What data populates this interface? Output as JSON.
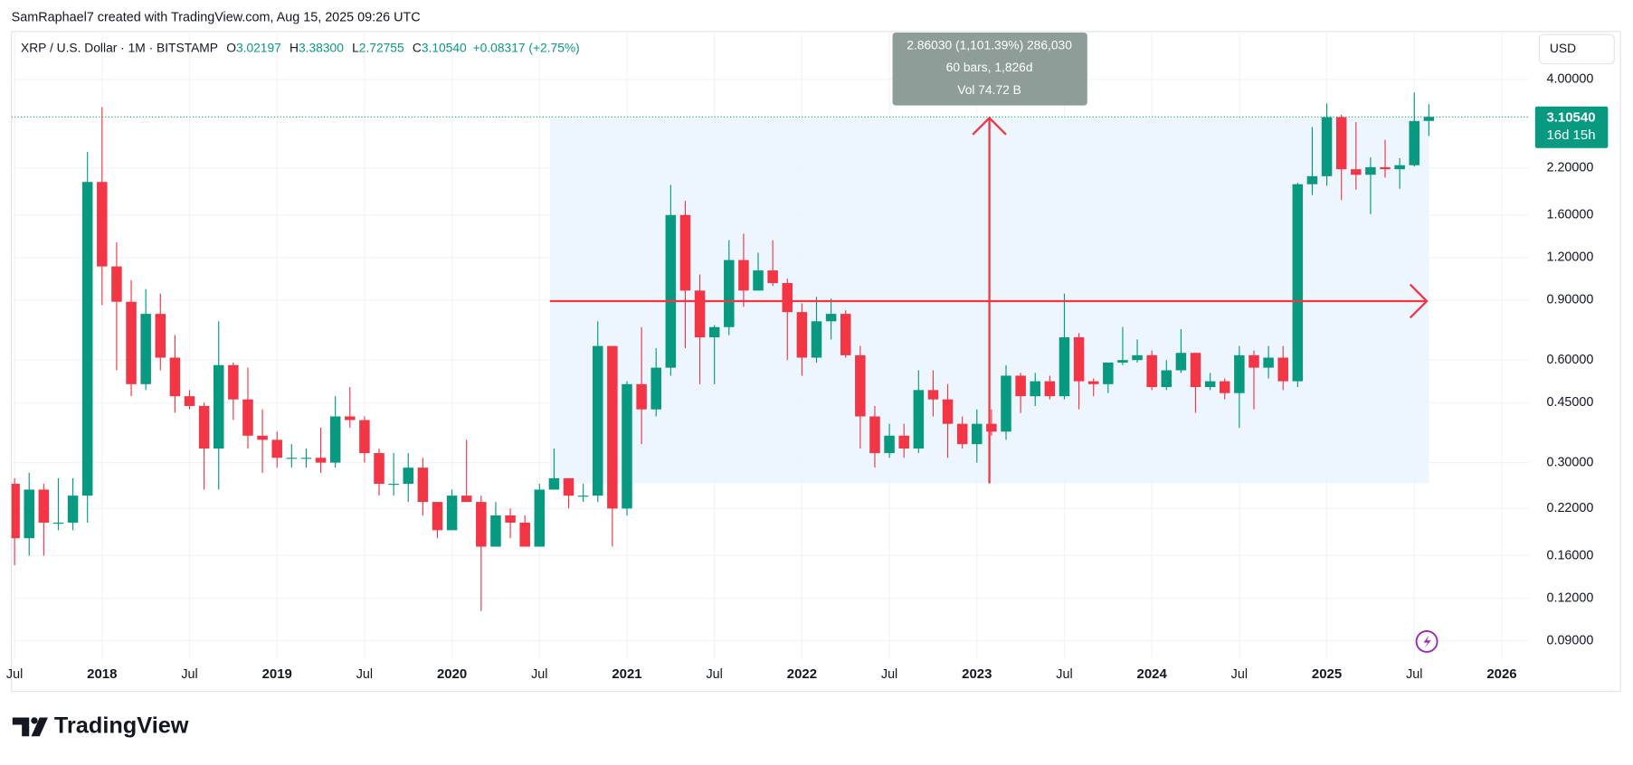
{
  "header": {
    "attribution": "SamRaphael7 created with TradingView.com, Aug 15, 2025 09:26 UTC",
    "symbol": "XRP / U.S. Dollar · 1M · BITSTAMP",
    "open_label": "O",
    "open": "3.02197",
    "high_label": "H",
    "high": "3.38300",
    "low_label": "L",
    "low": "2.72755",
    "close_label": "C",
    "close": "3.10540",
    "change": "+0.08317 (+2.75%)",
    "currency": "USD"
  },
  "chart_data": {
    "type": "candlestick",
    "log_scale": true,
    "grid": true,
    "up_color": "#089981",
    "down_color": "#f23645",
    "categories": [
      "Jul",
      null,
      null,
      null,
      null,
      null,
      "2018",
      null,
      null,
      null,
      null,
      null,
      "Jul",
      null,
      null,
      null,
      null,
      null,
      "2019",
      null,
      null,
      null,
      null,
      null,
      "Jul",
      null,
      null,
      null,
      null,
      null,
      "2020",
      null,
      null,
      null,
      null,
      null,
      "Jul",
      null,
      null,
      null,
      null,
      null,
      "2021",
      null,
      null,
      null,
      null,
      null,
      "Jul",
      null,
      null,
      null,
      null,
      null,
      "2022",
      null,
      null,
      null,
      null,
      null,
      "Jul",
      null,
      null,
      null,
      null,
      null,
      "2023",
      null,
      null,
      null,
      null,
      null,
      "Jul",
      null,
      null,
      null,
      null,
      null,
      "2024",
      null,
      null,
      null,
      null,
      null,
      "Jul",
      null,
      null,
      null,
      null,
      null,
      "2025",
      null,
      null,
      null,
      null,
      null,
      "Jul",
      null,
      null,
      null,
      null,
      null,
      "2026"
    ],
    "open": [
      0.26,
      0.18,
      0.25,
      0.2,
      0.2,
      0.24,
      2.0,
      1.13,
      0.89,
      0.51,
      0.82,
      0.61,
      0.47,
      0.44,
      0.33,
      0.58,
      0.46,
      0.36,
      0.35,
      0.31,
      0.31,
      0.31,
      0.3,
      0.41,
      0.4,
      0.32,
      0.26,
      0.26,
      0.29,
      0.23,
      0.19,
      0.24,
      0.23,
      0.17,
      0.21,
      0.2,
      0.17,
      0.25,
      0.27,
      0.24,
      0.24,
      0.66,
      0.22,
      0.51,
      0.43,
      0.57,
      1.6,
      0.96,
      0.7,
      0.75,
      1.18,
      0.96,
      1.1,
      1.01,
      0.83,
      0.61,
      0.78,
      0.82,
      0.62,
      0.41,
      0.32,
      0.36,
      0.33,
      0.49,
      0.46,
      0.39,
      0.34,
      0.39,
      0.37,
      0.54,
      0.47,
      0.52,
      0.47,
      0.7,
      0.52,
      0.51,
      0.59,
      0.6,
      0.62,
      0.5,
      0.56,
      0.63,
      0.5,
      0.52,
      0.48,
      0.62,
      0.57,
      0.61,
      0.52,
      1.97,
      2.08,
      3.1,
      2.18,
      2.1,
      2.21,
      2.18,
      2.24,
      3.02197,
      null,
      null,
      null,
      null,
      null
    ],
    "high": [
      0.27,
      0.28,
      0.26,
      0.27,
      0.27,
      2.45,
      3.32,
      1.33,
      1.03,
      0.97,
      0.94,
      0.71,
      0.49,
      0.45,
      0.78,
      0.59,
      0.57,
      0.43,
      0.37,
      0.34,
      0.33,
      0.38,
      0.47,
      0.5,
      0.41,
      0.33,
      0.32,
      0.32,
      0.31,
      0.23,
      0.25,
      0.35,
      0.24,
      0.23,
      0.22,
      0.21,
      0.26,
      0.33,
      0.27,
      0.26,
      0.78,
      0.66,
      0.52,
      0.75,
      0.65,
      1.96,
      1.76,
      1.07,
      0.76,
      1.35,
      1.41,
      1.24,
      1.35,
      1.04,
      0.88,
      0.92,
      0.91,
      0.84,
      0.66,
      0.44,
      0.39,
      0.39,
      0.56,
      0.56,
      0.51,
      0.41,
      0.43,
      0.43,
      0.58,
      0.55,
      0.55,
      0.54,
      0.94,
      0.72,
      0.53,
      0.59,
      0.75,
      0.69,
      0.64,
      0.6,
      0.74,
      0.63,
      0.55,
      0.53,
      0.66,
      0.64,
      0.66,
      0.66,
      1.99,
      2.9,
      3.4,
      3.15,
      3.0,
      2.36,
      2.66,
      2.35,
      3.66,
      3.383,
      null,
      null,
      null,
      null,
      null
    ],
    "low": [
      0.15,
      0.16,
      0.16,
      0.19,
      0.19,
      0.2,
      0.87,
      0.56,
      0.47,
      0.49,
      0.56,
      0.42,
      0.43,
      0.25,
      0.25,
      0.4,
      0.33,
      0.28,
      0.29,
      0.29,
      0.29,
      0.28,
      0.29,
      0.38,
      0.3,
      0.24,
      0.24,
      0.23,
      0.21,
      0.18,
      0.19,
      0.23,
      0.11,
      0.17,
      0.18,
      0.17,
      0.17,
      0.25,
      0.22,
      0.23,
      0.23,
      0.17,
      0.21,
      0.34,
      0.41,
      0.54,
      0.65,
      0.51,
      0.51,
      0.71,
      0.86,
      0.96,
      0.99,
      0.6,
      0.54,
      0.59,
      0.69,
      0.61,
      0.33,
      0.29,
      0.31,
      0.31,
      0.32,
      0.41,
      0.31,
      0.33,
      0.3,
      0.36,
      0.35,
      0.42,
      0.44,
      0.46,
      0.46,
      0.43,
      0.47,
      0.48,
      0.58,
      0.59,
      0.49,
      0.49,
      0.55,
      0.42,
      0.49,
      0.46,
      0.38,
      0.43,
      0.53,
      0.49,
      0.5,
      1.83,
      1.95,
      1.77,
      1.9,
      1.61,
      2.06,
      1.91,
      2.22,
      2.72755,
      null,
      null,
      null,
      null,
      null
    ],
    "close": [
      0.18,
      0.25,
      0.2,
      0.2,
      0.24,
      2.0,
      1.13,
      0.89,
      0.51,
      0.82,
      0.61,
      0.47,
      0.44,
      0.33,
      0.58,
      0.46,
      0.36,
      0.35,
      0.31,
      0.31,
      0.31,
      0.3,
      0.41,
      0.4,
      0.32,
      0.26,
      0.26,
      0.29,
      0.23,
      0.19,
      0.24,
      0.23,
      0.17,
      0.21,
      0.2,
      0.17,
      0.25,
      0.27,
      0.24,
      0.24,
      0.66,
      0.22,
      0.51,
      0.43,
      0.57,
      1.6,
      0.96,
      0.7,
      0.75,
      1.18,
      0.96,
      1.1,
      1.01,
      0.83,
      0.61,
      0.78,
      0.82,
      0.62,
      0.41,
      0.32,
      0.36,
      0.33,
      0.49,
      0.46,
      0.39,
      0.34,
      0.39,
      0.37,
      0.54,
      0.47,
      0.52,
      0.47,
      0.7,
      0.52,
      0.51,
      0.59,
      0.6,
      0.62,
      0.5,
      0.56,
      0.63,
      0.5,
      0.52,
      0.48,
      0.62,
      0.57,
      0.61,
      0.52,
      1.97,
      2.08,
      3.1,
      2.18,
      2.1,
      2.21,
      2.18,
      2.24,
      3.02,
      3.1054,
      null,
      null,
      null,
      null,
      null
    ],
    "ylim": [
      0.08,
      5.53
    ],
    "yticks": [
      {
        "value": 4,
        "label": "4.00000"
      },
      {
        "value": 2.2,
        "label": "2.20000"
      },
      {
        "value": 1.6,
        "label": "1.60000"
      },
      {
        "value": 1.2,
        "label": "1.20000"
      },
      {
        "value": 0.9,
        "label": "0.90000"
      },
      {
        "value": 0.6,
        "label": "0.60000"
      },
      {
        "value": 0.45,
        "label": "0.45000"
      },
      {
        "value": 0.3,
        "label": "0.30000"
      },
      {
        "value": 0.22,
        "label": "0.22000"
      },
      {
        "value": 0.16,
        "label": "0.16000"
      },
      {
        "value": 0.12,
        "label": "0.12000"
      },
      {
        "value": 0.09,
        "label": "0.09000"
      }
    ],
    "last_price": {
      "value": 3.1054,
      "label": "3.10540",
      "countdown": "16d 15h"
    },
    "measure": {
      "change": "2.86030 (1,101.39%) 286,030",
      "bars": "60 bars, 1,826d",
      "volume": "Vol 74.72 B"
    }
  },
  "footer": {
    "logo": "TradingView"
  }
}
